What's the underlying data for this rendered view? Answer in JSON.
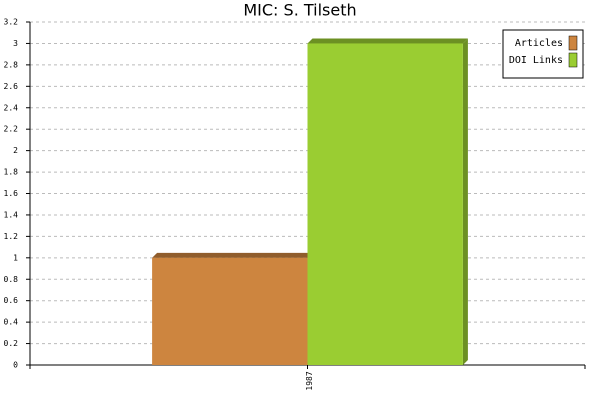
{
  "chart_data": {
    "type": "bar",
    "title": "MIC: S. Tilseth",
    "categories": [
      "1987"
    ],
    "series": [
      {
        "name": "Articles",
        "color": "#cd853f",
        "values": [
          1
        ]
      },
      {
        "name": "DOI Links",
        "color": "#9acd32",
        "values": [
          3
        ]
      }
    ],
    "ylim": [
      0,
      3.2
    ],
    "yticks": [
      0,
      0.2,
      0.4,
      0.6,
      0.8,
      1,
      1.2,
      1.4,
      1.6,
      1.8,
      2,
      2.2,
      2.4,
      2.6,
      2.8,
      3,
      3.2
    ],
    "grid": true,
    "legend": "upper right"
  }
}
